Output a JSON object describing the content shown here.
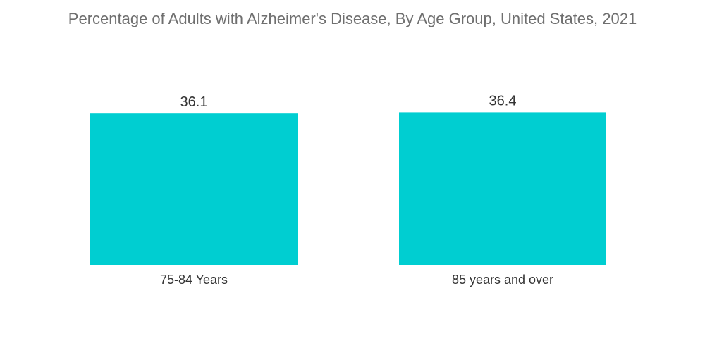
{
  "chart_data": {
    "type": "bar",
    "title": "Percentage of Adults with Alzheimer's Disease, By Age Group, United States, 2021",
    "categories": [
      "75-84 Years",
      "85 years and over"
    ],
    "values": [
      36.1,
      36.4
    ],
    "xlabel": "",
    "ylabel": "",
    "ylim": [
      0,
      40
    ],
    "grid": false,
    "bar_color": "#00CED1"
  }
}
